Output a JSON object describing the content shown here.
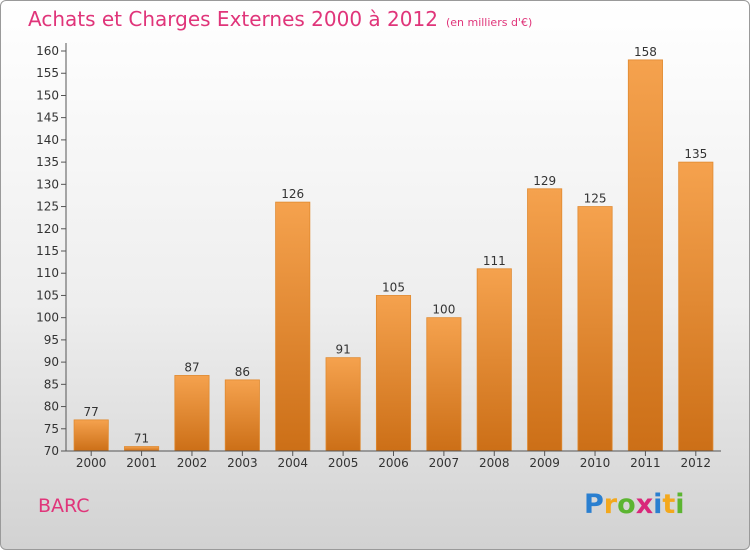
{
  "title": "Achats et Charges Externes 2000 à 2012",
  "unit_note": "(en milliers d'€)",
  "commune": "BARC",
  "logo": {
    "letters": [
      "P",
      "r",
      "o",
      "x",
      "i",
      "t",
      "i"
    ],
    "colors": [
      "#2a7fd0",
      "#f3a81d",
      "#5cb531",
      "#d9287a",
      "#2a7fd0",
      "#f3a81d",
      "#5cb531"
    ]
  },
  "colors": {
    "bar_light": "#f5a24e",
    "bar_dark": "#cc6f17",
    "title": "#e0357a"
  },
  "chart_data": {
    "type": "bar",
    "categories": [
      "2000",
      "2001",
      "2002",
      "2003",
      "2004",
      "2005",
      "2006",
      "2007",
      "2008",
      "2009",
      "2010",
      "2011",
      "2012"
    ],
    "values": [
      77,
      71,
      87,
      86,
      126,
      91,
      105,
      100,
      111,
      129,
      125,
      158,
      135
    ],
    "ylim": [
      70,
      160
    ],
    "yticks": [
      70,
      75,
      80,
      85,
      90,
      95,
      100,
      105,
      110,
      115,
      120,
      125,
      130,
      135,
      140,
      145,
      150,
      155,
      160
    ],
    "grid": false,
    "data_labels": true
  }
}
